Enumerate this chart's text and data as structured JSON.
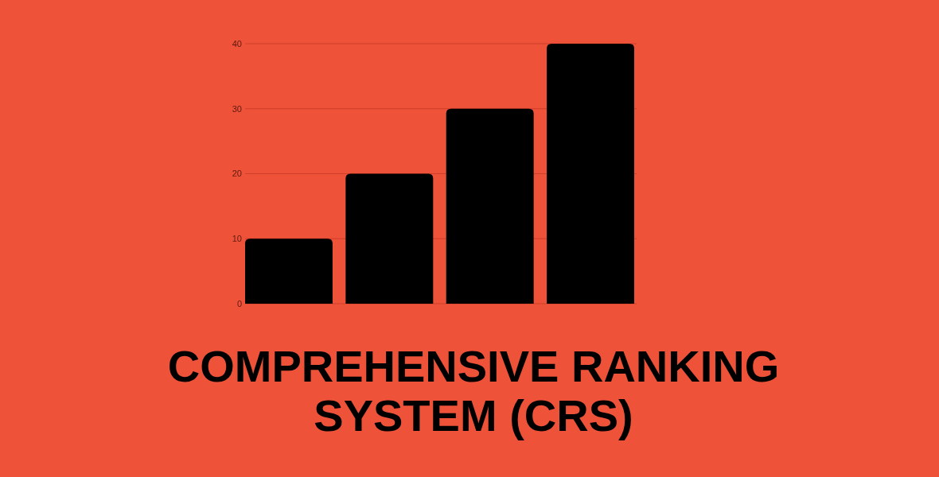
{
  "chart_data": {
    "type": "bar",
    "title": "COMPREHENSIVE RANKING SYSTEM (CRS)",
    "categories": [
      null,
      null,
      null,
      null
    ],
    "values": [
      10,
      20,
      30,
      40
    ],
    "color": "#000000",
    "ylim": [
      0,
      40
    ],
    "yticks": [
      0,
      10,
      20,
      30,
      40
    ],
    "grid": "y",
    "tick_labels": "y"
  }
}
